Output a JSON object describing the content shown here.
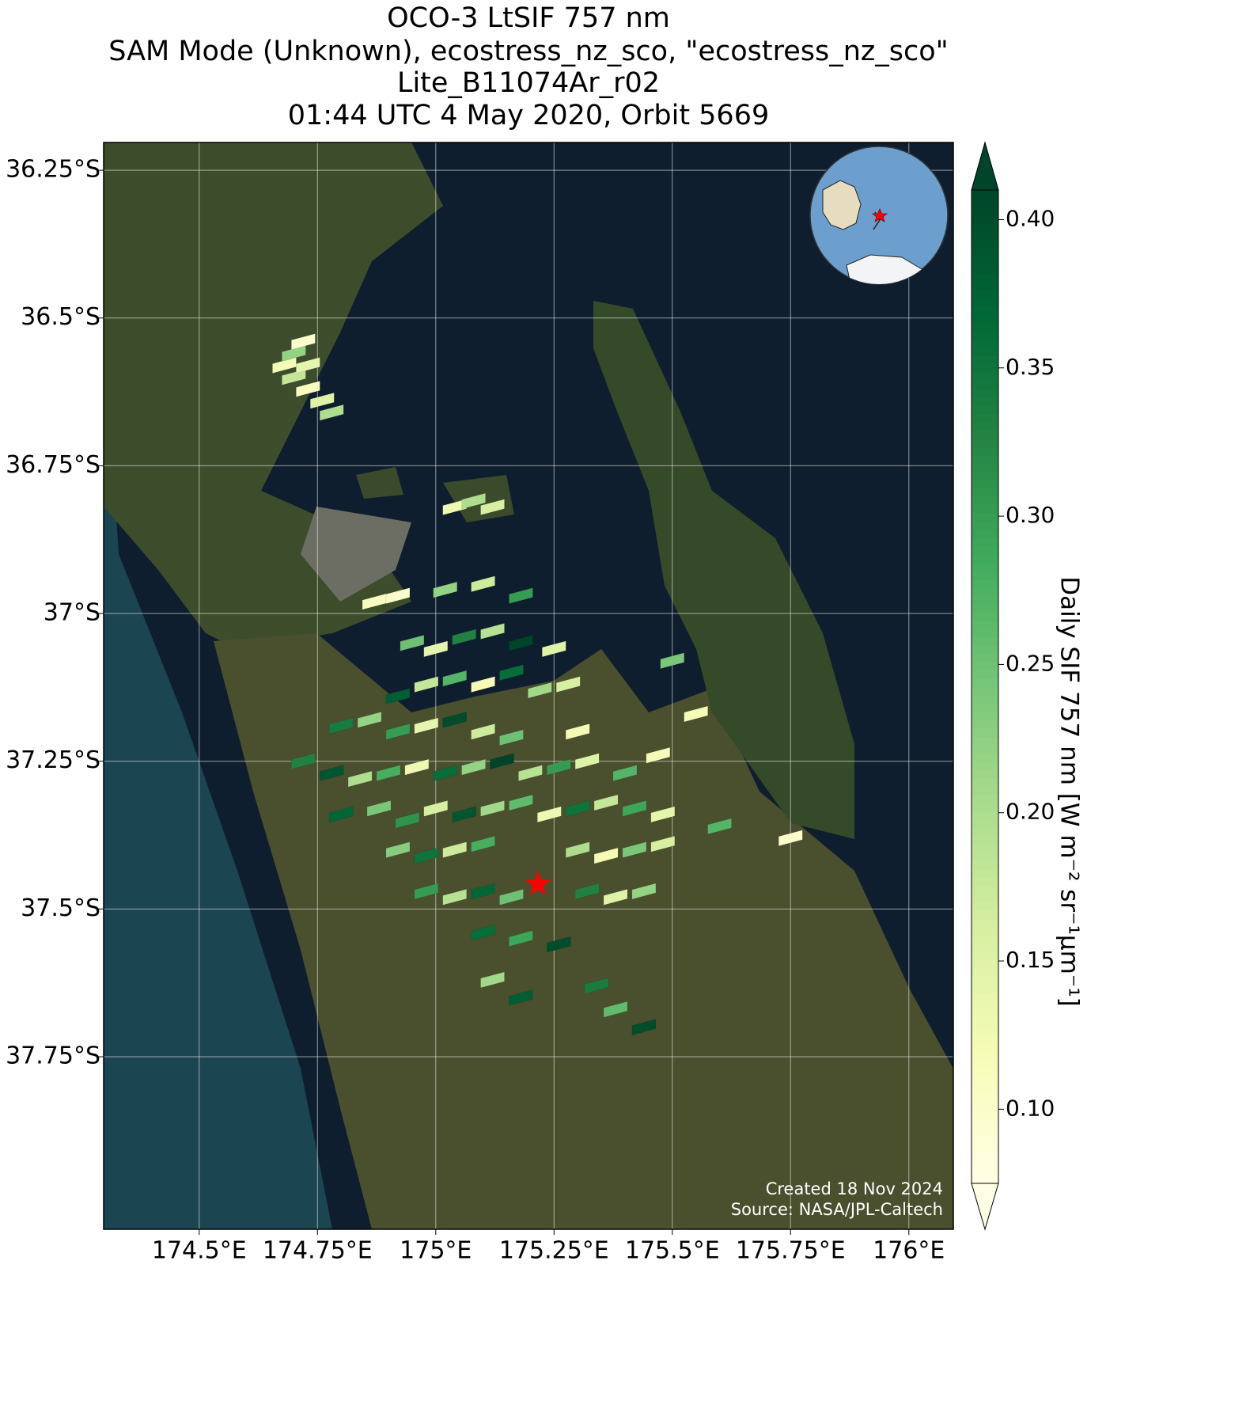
{
  "chart_data": {
    "type": "map",
    "title": [
      "OCO-3 LtSIF 757 nm",
      "SAM Mode (Unknown), ecostress_nz_sco, \"ecostress_nz_sco\"",
      "Lite_B11074Ar_r02",
      "01:44 UTC 4 May 2020, Orbit 5669"
    ],
    "x": [
      174.68,
      174.7,
      174.72,
      174.7,
      174.73,
      174.76,
      174.78,
      174.73,
      175.04,
      175.08,
      175.12,
      174.87,
      174.92,
      175.02,
      175.1,
      175.18,
      174.95,
      175.0,
      175.06,
      175.12,
      175.18,
      175.25,
      174.92,
      174.98,
      175.04,
      175.1,
      175.16,
      175.22,
      175.28,
      174.8,
      174.86,
      174.92,
      174.98,
      175.04,
      175.1,
      175.16,
      175.3,
      174.72,
      174.78,
      174.84,
      174.9,
      174.96,
      175.02,
      175.08,
      175.14,
      175.2,
      175.26,
      175.32,
      175.4,
      175.47,
      174.8,
      174.88,
      174.94,
      175.0,
      175.06,
      175.12,
      175.18,
      175.24,
      175.3,
      175.36,
      175.42,
      175.48,
      174.92,
      174.98,
      175.04,
      175.1,
      175.3,
      175.36,
      175.42,
      175.48,
      174.98,
      175.04,
      175.1,
      175.16,
      175.32,
      175.38,
      175.44,
      175.1,
      175.18,
      175.26,
      175.12,
      175.18,
      175.34,
      175.38,
      175.44,
      175.5,
      175.55,
      175.6,
      175.75
    ],
    "y": [
      -36.58,
      -36.56,
      -36.54,
      -36.6,
      -36.62,
      -36.64,
      -36.66,
      -36.58,
      -36.82,
      -36.81,
      -36.82,
      -36.98,
      -36.97,
      -36.96,
      -36.95,
      -36.97,
      -37.05,
      -37.06,
      -37.04,
      -37.03,
      -37.05,
      -37.06,
      -37.14,
      -37.12,
      -37.11,
      -37.12,
      -37.1,
      -37.13,
      -37.12,
      -37.19,
      -37.18,
      -37.2,
      -37.19,
      -37.18,
      -37.2,
      -37.21,
      -37.2,
      -37.25,
      -37.27,
      -37.28,
      -37.27,
      -37.26,
      -37.27,
      -37.26,
      -37.25,
      -37.27,
      -37.26,
      -37.25,
      -37.27,
      -37.24,
      -37.34,
      -37.33,
      -37.35,
      -37.33,
      -37.34,
      -37.33,
      -37.32,
      -37.34,
      -37.33,
      -37.32,
      -37.33,
      -37.34,
      -37.4,
      -37.41,
      -37.4,
      -37.39,
      -37.4,
      -37.41,
      -37.4,
      -37.39,
      -37.47,
      -37.48,
      -37.47,
      -37.48,
      -37.47,
      -37.48,
      -37.47,
      -37.54,
      -37.55,
      -37.56,
      -37.62,
      -37.65,
      -37.63,
      -37.67,
      -37.7,
      -37.08,
      -37.17,
      -37.36,
      -37.38
    ],
    "values": [
      0.12,
      0.22,
      0.1,
      0.18,
      0.11,
      0.15,
      0.2,
      0.14,
      0.13,
      0.2,
      0.16,
      0.11,
      0.1,
      0.22,
      0.17,
      0.3,
      0.25,
      0.14,
      0.33,
      0.19,
      0.41,
      0.15,
      0.38,
      0.18,
      0.27,
      0.12,
      0.36,
      0.21,
      0.16,
      0.34,
      0.22,
      0.3,
      0.14,
      0.4,
      0.17,
      0.25,
      0.12,
      0.33,
      0.39,
      0.2,
      0.28,
      0.13,
      0.36,
      0.22,
      0.41,
      0.19,
      0.3,
      0.15,
      0.27,
      0.12,
      0.37,
      0.24,
      0.31,
      0.16,
      0.39,
      0.21,
      0.26,
      0.13,
      0.35,
      0.18,
      0.29,
      0.14,
      0.23,
      0.35,
      0.17,
      0.28,
      0.2,
      0.12,
      0.24,
      0.16,
      0.3,
      0.19,
      0.37,
      0.25,
      0.33,
      0.15,
      0.22,
      0.36,
      0.29,
      0.4,
      0.21,
      0.38,
      0.34,
      0.26,
      0.4,
      0.24,
      0.12,
      0.27,
      0.1
    ],
    "colormap": "YlGn",
    "clim": [
      0.075,
      0.41
    ],
    "colorbar_label": "Daily SIF 757 nm [W m⁻² sr⁻¹μm⁻¹]",
    "colorbar_ticks": [
      {
        "value": 0.1,
        "label": "0.10"
      },
      {
        "value": 0.15,
        "label": "0.15"
      },
      {
        "value": 0.2,
        "label": "0.20"
      },
      {
        "value": 0.25,
        "label": "0.25"
      },
      {
        "value": 0.3,
        "label": "0.30"
      },
      {
        "value": 0.35,
        "label": "0.35"
      },
      {
        "value": 0.4,
        "label": "0.40"
      }
    ],
    "xlim": [
      174.298,
      176.094
    ],
    "ylim": [
      -38.042,
      -36.203
    ],
    "xticks": [
      {
        "value": 174.5,
        "label": "174.5°E"
      },
      {
        "value": 174.75,
        "label": "174.75°E"
      },
      {
        "value": 175,
        "label": "175°E"
      },
      {
        "value": 175.25,
        "label": "175.25°E"
      },
      {
        "value": 175.5,
        "label": "175.5°E"
      },
      {
        "value": 175.75,
        "label": "175.75°E"
      },
      {
        "value": 176,
        "label": "176°E"
      }
    ],
    "yticks": [
      {
        "value": -36.25,
        "label": "36.25°S"
      },
      {
        "value": -36.5,
        "label": "36.5°S"
      },
      {
        "value": -36.75,
        "label": "36.75°S"
      },
      {
        "value": -37,
        "label": "37°S"
      },
      {
        "value": -37.25,
        "label": "37.25°S"
      },
      {
        "value": -37.5,
        "label": "37.5°S"
      },
      {
        "value": -37.75,
        "label": "37.75°S"
      }
    ],
    "grid": true,
    "target": {
      "x": 175.216,
      "y": -37.458,
      "color": "#ff0000"
    },
    "annotations": [
      "Created 18 Nov 2024",
      "Source: NASA/JPL-Caltech"
    ]
  }
}
